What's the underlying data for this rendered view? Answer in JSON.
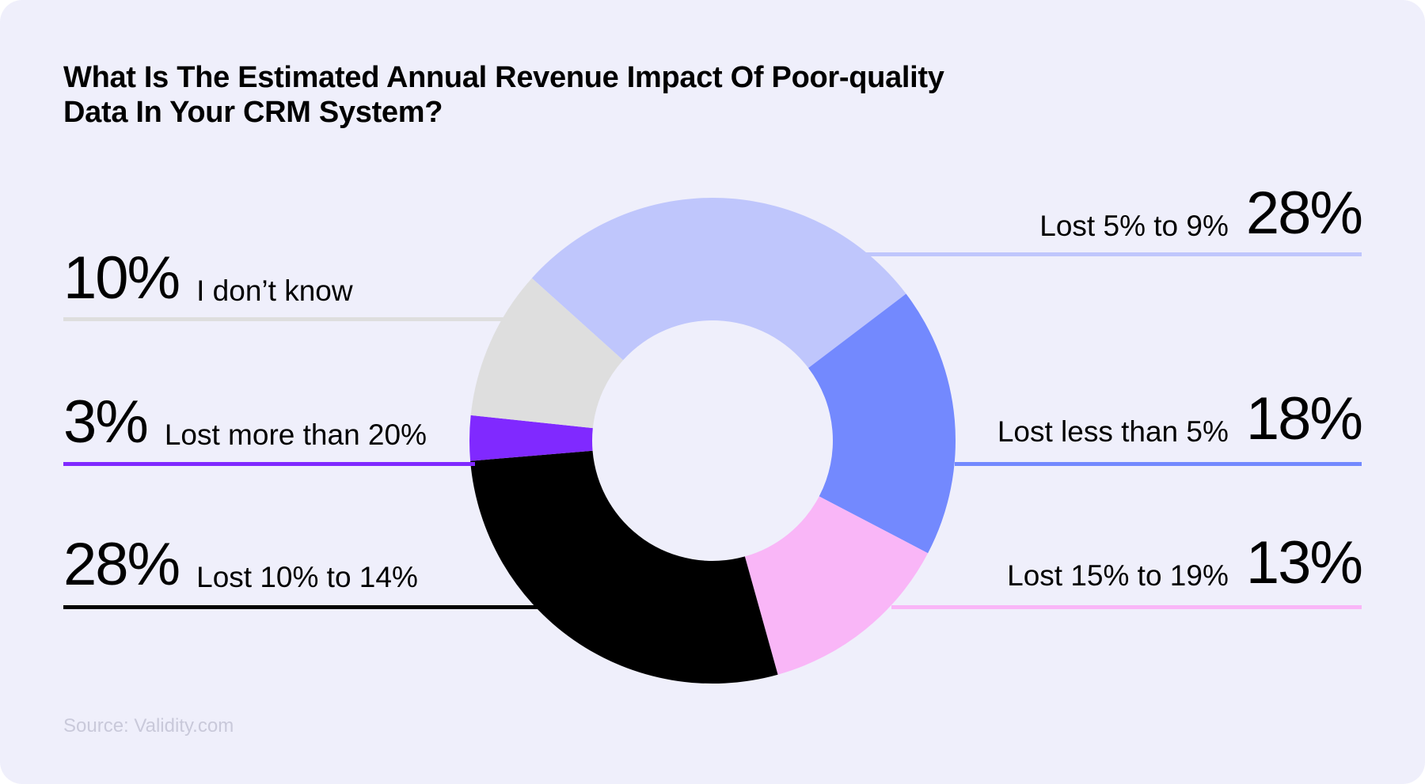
{
  "title_lines": [
    "What Is The Estimated Annual Revenue Impact Of Poor-quality",
    "Data In Your CRM System?"
  ],
  "source": "Source: Validity.com",
  "chart_data": {
    "type": "pie",
    "title": "What Is The Estimated Annual Revenue Impact Of Poor-quality Data In Your CRM System?",
    "slices": [
      {
        "label": "Lost 5% to 9%",
        "value": 28,
        "display": "28%",
        "color": "#bfc6fc"
      },
      {
        "label": "Lost less than 5%",
        "value": 18,
        "display": "18%",
        "color": "#7389fe"
      },
      {
        "label": "Lost 15% to 19%",
        "value": 13,
        "display": "13%",
        "color": "#f9b6f7"
      },
      {
        "label": "Lost 10% to 14%",
        "value": 28,
        "display": "28%",
        "color": "#000000"
      },
      {
        "label": "Lost more than 20%",
        "value": 3,
        "display": "3%",
        "color": "#8029ff"
      },
      {
        "label": "I don’t know",
        "value": 10,
        "display": "10%",
        "color": "#dedede"
      }
    ],
    "legend_placement": "labels on both sides with colored leader lines"
  }
}
